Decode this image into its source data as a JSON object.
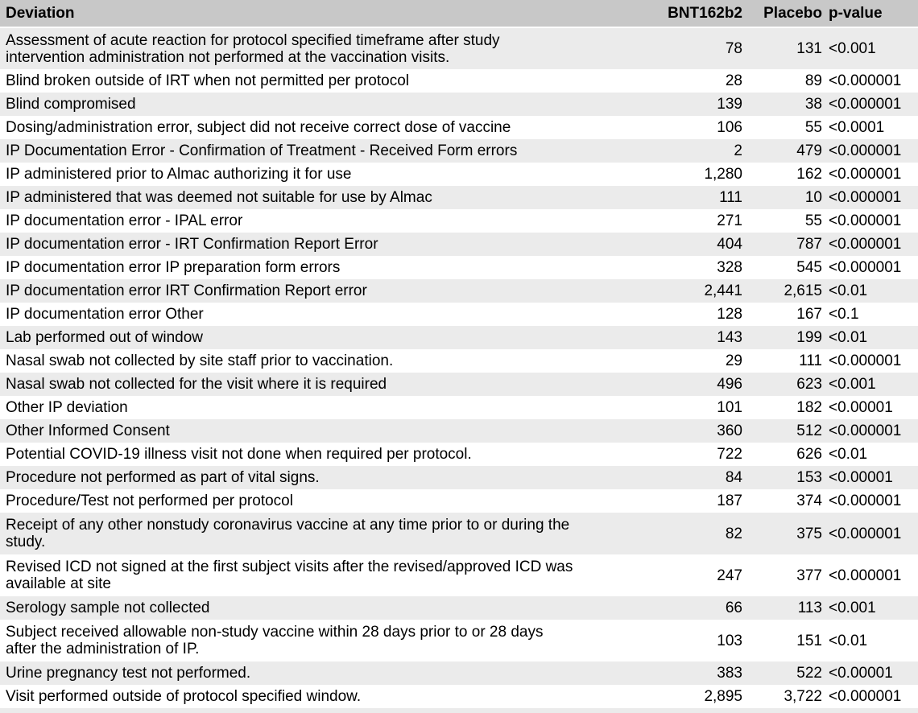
{
  "colors": {
    "header_bg": "#c8c8c8",
    "stripe_bg": "#ebebeb",
    "row_bg": "#ffffff",
    "text": "#000000"
  },
  "table": {
    "columns": [
      "Deviation",
      "BNT162b2",
      "Placebo",
      "p-value"
    ],
    "rows": [
      {
        "deviation": "Assessment of acute reaction for protocol specified timeframe after study\nintervention administration not performed at the vaccination visits.",
        "bnt162b2": "78",
        "placebo": "131",
        "p_value": "<0.001"
      },
      {
        "deviation": "Blind broken outside of IRT when not permitted per protocol",
        "bnt162b2": "28",
        "placebo": "89",
        "p_value": "<0.000001"
      },
      {
        "deviation": "Blind compromised",
        "bnt162b2": "139",
        "placebo": "38",
        "p_value": "<0.000001"
      },
      {
        "deviation": "Dosing/administration error, subject did not receive correct dose of vaccine",
        "bnt162b2": "106",
        "placebo": "55",
        "p_value": "<0.0001"
      },
      {
        "deviation": "IP Documentation Error - Confirmation of Treatment - Received Form errors",
        "bnt162b2": "2",
        "placebo": "479",
        "p_value": "<0.000001"
      },
      {
        "deviation": "IP administered prior to Almac authorizing it for use",
        "bnt162b2": "1,280",
        "placebo": "162",
        "p_value": "<0.000001"
      },
      {
        "deviation": "IP administered that was deemed not suitable for use by Almac",
        "bnt162b2": "111",
        "placebo": "10",
        "p_value": "<0.000001"
      },
      {
        "deviation": "IP documentation error - IPAL error",
        "bnt162b2": "271",
        "placebo": "55",
        "p_value": "<0.000001"
      },
      {
        "deviation": "IP documentation error - IRT Confirmation Report Error",
        "bnt162b2": "404",
        "placebo": "787",
        "p_value": "<0.000001"
      },
      {
        "deviation": "IP documentation error IP preparation form errors",
        "bnt162b2": "328",
        "placebo": "545",
        "p_value": "<0.000001"
      },
      {
        "deviation": "IP documentation error IRT Confirmation Report error",
        "bnt162b2": "2,441",
        "placebo": "2,615",
        "p_value": "<0.01"
      },
      {
        "deviation": "IP documentation error Other",
        "bnt162b2": "128",
        "placebo": "167",
        "p_value": "<0.1"
      },
      {
        "deviation": "Lab performed out of window",
        "bnt162b2": "143",
        "placebo": "199",
        "p_value": "<0.01"
      },
      {
        "deviation": "Nasal swab not collected by site staff prior to vaccination.",
        "bnt162b2": "29",
        "placebo": "111",
        "p_value": "<0.000001"
      },
      {
        "deviation": "Nasal swab not collected for the visit where it is required",
        "bnt162b2": "496",
        "placebo": "623",
        "p_value": "<0.001"
      },
      {
        "deviation": "Other IP deviation",
        "bnt162b2": "101",
        "placebo": "182",
        "p_value": "<0.00001"
      },
      {
        "deviation": "Other Informed Consent",
        "bnt162b2": "360",
        "placebo": "512",
        "p_value": "<0.000001"
      },
      {
        "deviation": "Potential COVID-19 illness visit not done when required per protocol.",
        "bnt162b2": "722",
        "placebo": "626",
        "p_value": "<0.01"
      },
      {
        "deviation": "Procedure not performed as part of vital signs.",
        "bnt162b2": "84",
        "placebo": "153",
        "p_value": "<0.00001"
      },
      {
        "deviation": "Procedure/Test not performed per protocol",
        "bnt162b2": "187",
        "placebo": "374",
        "p_value": "<0.000001"
      },
      {
        "deviation": "Receipt of any other nonstudy coronavirus vaccine at any time prior to or during the\nstudy.",
        "bnt162b2": "82",
        "placebo": "375",
        "p_value": "<0.000001"
      },
      {
        "deviation": "Revised ICD not signed at the first subject visits after the revised/approved ICD was\navailable at site",
        "bnt162b2": "247",
        "placebo": "377",
        "p_value": "<0.000001"
      },
      {
        "deviation": "Serology sample not collected",
        "bnt162b2": "66",
        "placebo": "113",
        "p_value": "<0.001"
      },
      {
        "deviation": "Subject received allowable non-study vaccine within 28 days prior to or 28 days\nafter the administration of IP.",
        "bnt162b2": "103",
        "placebo": "151",
        "p_value": "<0.01"
      },
      {
        "deviation": "Urine pregnancy test not performed.",
        "bnt162b2": "383",
        "placebo": "522",
        "p_value": "<0.00001"
      },
      {
        "deviation": "Visit performed outside of protocol specified window.",
        "bnt162b2": "2,895",
        "placebo": "3,722",
        "p_value": "<0.000001"
      }
    ]
  }
}
